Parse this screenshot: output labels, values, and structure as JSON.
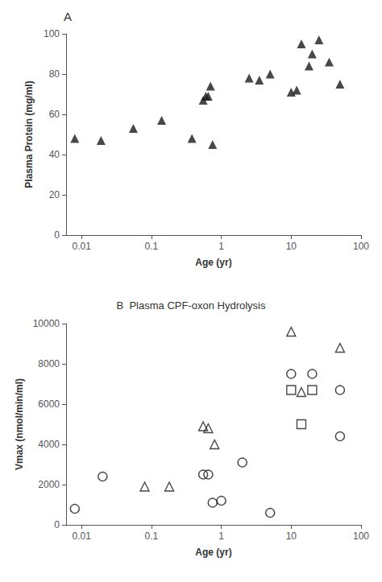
{
  "chart_data": [
    {
      "type": "scatter",
      "title": "A",
      "xlabel": "Age (yr)",
      "ylabel": "Plasma Protein (mg/ml)",
      "log": "x",
      "xlim": [
        0.006,
        100
      ],
      "xticks": [
        0.01,
        0.1,
        1,
        10,
        100
      ],
      "ylim": [
        0,
        100
      ],
      "yticks": [
        0,
        20,
        40,
        60,
        80,
        100
      ],
      "grid": false,
      "series": [
        {
          "marker": "triangle",
          "color": "#1a1a1a",
          "x": [
            0.008,
            0.019,
            0.055,
            0.14,
            0.38,
            0.55,
            0.6,
            0.65,
            0.7,
            0.75,
            2.5,
            3.5,
            5.0,
            10.0,
            12.0,
            14.0,
            18.0,
            20.0,
            25.0,
            35.0,
            50.0
          ],
          "values": [
            48,
            47,
            53,
            57,
            48,
            67,
            69,
            69,
            74,
            45,
            78,
            77,
            80,
            71,
            72,
            95,
            84,
            90,
            97,
            86,
            75
          ]
        }
      ]
    },
    {
      "type": "scatter",
      "title": "B  Plasma CPF-oxon Hydrolysis",
      "xlabel": "Age (yr)",
      "ylabel": "Vmax (nmol/min/ml)",
      "log": "x",
      "xlim": [
        0.006,
        100
      ],
      "xticks": [
        0.01,
        0.1,
        1,
        10,
        100
      ],
      "ylim": [
        0,
        10000
      ],
      "yticks": [
        0,
        2000,
        4000,
        6000,
        8000,
        10000
      ],
      "grid": false,
      "series": [
        {
          "marker": "circle-open",
          "color": "#1a1a1a",
          "x": [
            0.008,
            0.02,
            0.55,
            0.65,
            0.75,
            1.0,
            2.0,
            5.0,
            10.0,
            20.0,
            50.0,
            50.0
          ],
          "values": [
            800,
            2400,
            2500,
            2500,
            1100,
            1200,
            3100,
            600,
            7500,
            7500,
            6700,
            4400
          ]
        },
        {
          "marker": "triangle-open",
          "color": "#1a1a1a",
          "x": [
            0.08,
            0.18,
            0.55,
            0.65,
            0.8,
            10.0,
            14.0,
            50.0
          ],
          "values": [
            1900,
            1900,
            4900,
            4800,
            4000,
            9600,
            6600,
            8800
          ]
        },
        {
          "marker": "square-open",
          "color": "#1a1a1a",
          "x": [
            10.0,
            14.0,
            20.0
          ],
          "values": [
            6700,
            5000,
            6700
          ]
        }
      ]
    }
  ]
}
